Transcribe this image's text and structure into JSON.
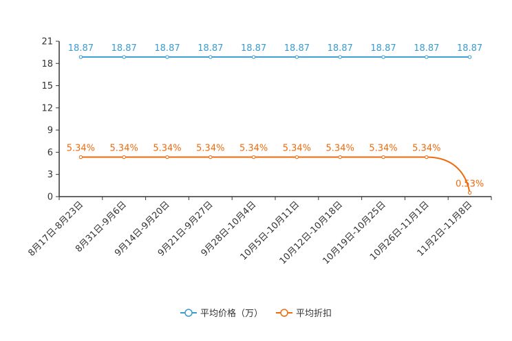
{
  "chart_data": {
    "type": "line",
    "categories": [
      "8月17日-8月23日",
      "8月31日-9月6日",
      "9月14日-9月20日",
      "9月21日-9月27日",
      "9月28日-10月4日",
      "10月5日-10月11日",
      "10月12日-10月18日",
      "10月19日-10月25日",
      "10月26日-11月1日",
      "11月2日-11月8日"
    ],
    "ylim": [
      0,
      21
    ],
    "yticks": [
      0,
      3,
      6,
      9,
      12,
      15,
      18,
      21
    ],
    "series": [
      {
        "name": "平均价格（万）",
        "color": "#3a9bd0",
        "values": [
          18.87,
          18.87,
          18.87,
          18.87,
          18.87,
          18.87,
          18.87,
          18.87,
          18.87,
          18.87
        ],
        "labels": [
          "18.87",
          "18.87",
          "18.87",
          "18.87",
          "18.87",
          "18.87",
          "18.87",
          "18.87",
          "18.87",
          "18.87"
        ]
      },
      {
        "name": "平均折扣",
        "color": "#ee6a0c",
        "values": [
          5.34,
          5.34,
          5.34,
          5.34,
          5.34,
          5.34,
          5.34,
          5.34,
          5.34,
          0.53
        ],
        "labels": [
          "5.34%",
          "5.34%",
          "5.34%",
          "5.34%",
          "5.34%",
          "5.34%",
          "5.34%",
          "5.34%",
          "5.34%",
          "0.53%"
        ]
      }
    ],
    "legend_position": "bottom-center"
  }
}
